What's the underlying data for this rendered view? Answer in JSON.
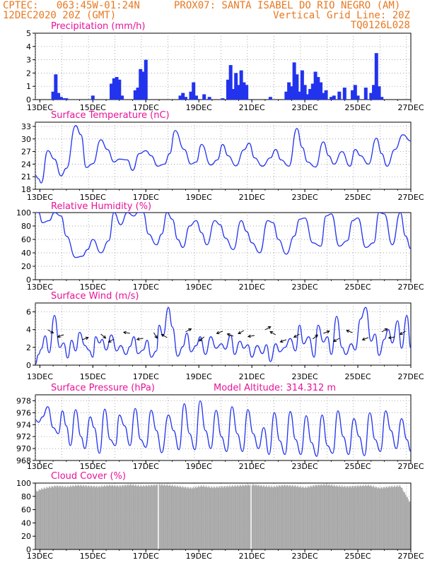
{
  "header": {
    "left_line1": "CPTEC:   063:45W-01:24N",
    "left_line2": "12DEC2020 20Z (GMT)",
    "right_line1": "PROX07: SANTA ISABEL DO RIO NEGRO (AM)",
    "right_line2": "Vertical Grid Line: 20Z",
    "right_line3": "TQ0126L028"
  },
  "colors": {
    "header": "#e87820",
    "title": "#e8129a",
    "series": "#2233ee",
    "cloud": "#a9a9a9"
  },
  "chart_data": [
    {
      "id": "precip",
      "type": "bar",
      "title": "Precipitation (mm/h)",
      "ylim": [
        0,
        5
      ],
      "yticks": [
        0,
        1,
        2,
        3,
        4,
        5
      ],
      "xlim": [
        12.83,
        27.0
      ],
      "xticks": [
        "13DEC",
        "15DEC",
        "17DEC",
        "19DEC",
        "21DEC",
        "23DEC",
        "25DEC",
        "27DEC"
      ],
      "x": [
        13.5,
        13.6,
        13.7,
        13.8,
        13.9,
        14.0,
        15.0,
        15.7,
        15.8,
        15.9,
        16.0,
        16.1,
        16.6,
        16.7,
        16.8,
        16.9,
        17.0,
        18.3,
        18.4,
        18.5,
        18.7,
        18.8,
        18.9,
        19.2,
        19.4,
        19.9,
        20.1,
        20.2,
        20.3,
        20.4,
        20.5,
        20.6,
        20.7,
        20.8,
        21.7,
        22.3,
        22.4,
        22.5,
        22.6,
        22.7,
        22.8,
        22.9,
        23.0,
        23.1,
        23.2,
        23.3,
        23.4,
        23.5,
        23.6,
        23.7,
        23.8,
        24.0,
        24.1,
        24.3,
        24.5,
        24.8,
        24.9,
        25.0,
        25.3,
        25.5,
        25.6,
        25.7,
        25.8,
        25.9
      ],
      "values": [
        0.6,
        1.9,
        0.5,
        0.2,
        0.1,
        0.1,
        0.3,
        1.2,
        1.6,
        1.7,
        1.5,
        0.3,
        0.7,
        0.9,
        2.3,
        2.1,
        3.0,
        0.3,
        0.5,
        0.2,
        0.6,
        1.3,
        0.3,
        0.4,
        0.2,
        0.1,
        1.5,
        2.6,
        0.8,
        2.0,
        1.1,
        2.2,
        1.3,
        1.1,
        0.2,
        0.6,
        1.3,
        1.0,
        2.8,
        1.9,
        0.6,
        2.2,
        1.1,
        0.4,
        0.8,
        1.2,
        2.1,
        1.7,
        1.3,
        0.5,
        0.7,
        0.2,
        0.3,
        0.6,
        0.9,
        0.7,
        1.1,
        0.3,
        0.9,
        0.5,
        1.1,
        3.5,
        1.0,
        0.2
      ]
    },
    {
      "id": "temp",
      "type": "line",
      "title": "Surface Temperature (nC)",
      "ylim": [
        18,
        34
      ],
      "yticks": [
        18,
        21,
        24,
        27,
        30,
        33
      ],
      "xlim": [
        12.83,
        27.0
      ],
      "xticks": [
        "13DEC",
        "15DEC",
        "17DEC",
        "19DEC",
        "21DEC",
        "23DEC",
        "25DEC",
        "27DEC"
      ],
      "x": [
        12.83,
        12.95,
        13.05,
        13.3,
        13.55,
        13.8,
        14.0,
        14.35,
        14.55,
        14.75,
        15.0,
        15.3,
        15.55,
        15.8,
        16.0,
        16.3,
        16.5,
        16.75,
        17.0,
        17.2,
        17.45,
        17.7,
        17.9,
        18.1,
        18.45,
        18.7,
        18.9,
        19.1,
        19.45,
        19.7,
        19.9,
        20.1,
        20.4,
        20.7,
        20.9,
        21.1,
        21.4,
        21.7,
        21.9,
        22.1,
        22.4,
        22.7,
        22.9,
        23.1,
        23.4,
        23.7,
        23.9,
        24.1,
        24.4,
        24.7,
        24.9,
        25.1,
        25.4,
        25.7,
        25.9,
        26.1,
        26.4,
        26.7,
        27.0
      ],
      "values": [
        21.3,
        20.5,
        19.5,
        27.2,
        25.2,
        21.2,
        23.0,
        33.2,
        31.0,
        23.2,
        24.1,
        29.8,
        27.5,
        24.5,
        25.2,
        25.0,
        22.5,
        26.5,
        27.2,
        26.0,
        23.5,
        24.0,
        26.5,
        32.0,
        27.5,
        24.0,
        24.5,
        28.7,
        23.8,
        25.0,
        28.7,
        26.0,
        23.6,
        27.4,
        29.0,
        25.5,
        23.5,
        25.5,
        27.5,
        25.0,
        23.5,
        32.5,
        28.0,
        24.5,
        23.3,
        29.3,
        26.0,
        24.0,
        27.0,
        23.5,
        27.5,
        26.0,
        24.0,
        30.2,
        26.5,
        23.5,
        27.5,
        31.0,
        29.5
      ]
    },
    {
      "id": "rh",
      "type": "line",
      "title": "Relative Humidity (%)",
      "ylim": [
        0,
        100
      ],
      "yticks": [
        0,
        20,
        40,
        60,
        80,
        100
      ],
      "xlim": [
        12.83,
        27.0
      ],
      "xticks": [
        "13DEC",
        "15DEC",
        "17DEC",
        "19DEC",
        "21DEC",
        "23DEC",
        "25DEC",
        "27DEC"
      ],
      "x": [
        12.83,
        12.95,
        13.1,
        13.35,
        13.55,
        13.8,
        14.0,
        14.35,
        14.6,
        14.8,
        15.0,
        15.3,
        15.6,
        15.8,
        16.05,
        16.3,
        16.55,
        16.7,
        16.9,
        17.1,
        17.4,
        17.6,
        17.8,
        18.0,
        18.2,
        18.4,
        18.65,
        18.9,
        19.1,
        19.3,
        19.6,
        19.8,
        20.0,
        20.3,
        20.6,
        20.8,
        21.0,
        21.3,
        21.6,
        21.8,
        22.0,
        22.3,
        22.6,
        22.8,
        23.0,
        23.3,
        23.6,
        23.8,
        24.0,
        24.3,
        24.6,
        24.8,
        25.0,
        25.3,
        25.6,
        25.8,
        26.0,
        26.3,
        26.6,
        26.8,
        27.0
      ],
      "values": [
        100,
        100,
        85,
        88,
        100,
        95,
        65,
        33,
        35,
        45,
        60,
        40,
        58,
        100,
        82,
        100,
        95,
        100,
        100,
        68,
        52,
        68,
        100,
        90,
        60,
        48,
        80,
        88,
        70,
        52,
        88,
        82,
        62,
        45,
        88,
        72,
        55,
        40,
        88,
        85,
        60,
        38,
        65,
        90,
        92,
        55,
        50,
        95,
        98,
        50,
        58,
        88,
        92,
        48,
        55,
        100,
        98,
        52,
        100,
        65,
        46
      ]
    },
    {
      "id": "wind",
      "type": "line",
      "title": "Surface Wind (m/s)",
      "ylim": [
        0,
        7
      ],
      "yticks": [
        0,
        2,
        4,
        6
      ],
      "xlim": [
        12.83,
        27.0
      ],
      "xticks": [
        "13DEC",
        "15DEC",
        "17DEC",
        "19DEC",
        "21DEC",
        "23DEC",
        "25DEC",
        "27DEC"
      ],
      "x": [
        12.83,
        12.95,
        13.05,
        13.2,
        13.35,
        13.55,
        13.75,
        13.9,
        14.05,
        14.2,
        14.35,
        14.5,
        14.7,
        14.85,
        15.0,
        15.1,
        15.25,
        15.35,
        15.5,
        15.7,
        15.9,
        16.05,
        16.25,
        16.4,
        16.55,
        16.7,
        16.9,
        17.05,
        17.2,
        17.4,
        17.5,
        17.65,
        17.85,
        18.0,
        18.2,
        18.4,
        18.55,
        18.7,
        18.9,
        19.05,
        19.25,
        19.45,
        19.65,
        19.85,
        20.0,
        20.2,
        20.35,
        20.55,
        20.7,
        20.85,
        21.0,
        21.2,
        21.4,
        21.55,
        21.7,
        21.9,
        22.05,
        22.25,
        22.45,
        22.65,
        22.8,
        22.95,
        23.15,
        23.35,
        23.5,
        23.7,
        23.85,
        24.0,
        24.2,
        24.4,
        24.55,
        24.75,
        24.9,
        25.1,
        25.3,
        25.5,
        25.65,
        25.8,
        26.0,
        26.15,
        26.3,
        26.5,
        26.65,
        26.85,
        27.0
      ],
      "values": [
        0.1,
        1.2,
        1.8,
        3.3,
        1.4,
        5.6,
        2.0,
        2.5,
        0.8,
        2.8,
        1.6,
        3.7,
        2.2,
        1.7,
        0.9,
        3.2,
        2.5,
        2.9,
        1.7,
        3.4,
        1.6,
        2.2,
        1.2,
        2.1,
        3.2,
        1.3,
        1.7,
        2.8,
        0.9,
        1.6,
        4.5,
        3.3,
        6.5,
        4.3,
        1.0,
        2.1,
        3.6,
        1.5,
        2.2,
        3.2,
        1.2,
        3.2,
        1.9,
        2.4,
        1.8,
        3.4,
        1.2,
        2.7,
        1.9,
        2.3,
        0.9,
        2.2,
        1.3,
        2.3,
        0.4,
        2.4,
        1.5,
        2.0,
        3.0,
        1.6,
        4.5,
        2.4,
        3.2,
        0.9,
        4.5,
        2.6,
        3.2,
        1.2,
        5.5,
        2.0,
        1.2,
        2.4,
        1.7,
        5.2,
        6.5,
        2.7,
        3.5,
        1.1,
        2.9,
        4.0,
        2.5,
        5.0,
        1.9,
        5.6,
        1.9
      ]
    },
    {
      "id": "pressure",
      "type": "line",
      "title": "Surface Pressure (hPa)",
      "annotation": "Model Altitude: 314.312 m",
      "ylim": [
        968,
        979
      ],
      "yticks": [
        968,
        970,
        972,
        974,
        976,
        978
      ],
      "xlim": [
        12.83,
        27.0
      ],
      "xticks": [
        "13DEC",
        "15DEC",
        "17DEC",
        "19DEC",
        "21DEC",
        "23DEC",
        "25DEC",
        "27DEC"
      ],
      "x": [
        12.83,
        12.95,
        13.1,
        13.3,
        13.5,
        13.7,
        13.85,
        14.0,
        14.15,
        14.35,
        14.55,
        14.7,
        14.9,
        15.05,
        15.25,
        15.45,
        15.65,
        15.85,
        16.0,
        16.2,
        16.4,
        16.6,
        16.8,
        17.0,
        17.2,
        17.4,
        17.6,
        17.85,
        18.05,
        18.25,
        18.45,
        18.65,
        18.85,
        19.05,
        19.25,
        19.45,
        19.65,
        19.85,
        20.05,
        20.25,
        20.45,
        20.65,
        20.85,
        21.05,
        21.25,
        21.45,
        21.65,
        21.85,
        22.05,
        22.25,
        22.45,
        22.65,
        22.85,
        23.05,
        23.25,
        23.45,
        23.65,
        23.85,
        24.05,
        24.25,
        24.45,
        24.65,
        24.85,
        25.05,
        25.25,
        25.45,
        25.65,
        25.85,
        26.05,
        26.25,
        26.45,
        26.65,
        26.85,
        27.0
      ],
      "values": [
        974.8,
        974.4,
        975.3,
        977.0,
        973.5,
        972.5,
        976.3,
        973.8,
        970.5,
        976.5,
        972.0,
        970.0,
        975.3,
        973.5,
        969.2,
        976.6,
        971.5,
        970.5,
        975.6,
        973.8,
        970.5,
        976.7,
        971.5,
        970.2,
        976.4,
        973.0,
        969.3,
        975.6,
        973.0,
        969.8,
        977.5,
        972.5,
        969.8,
        978.0,
        973.0,
        970.0,
        976.4,
        972.0,
        969.5,
        977.0,
        972.5,
        969.5,
        976.5,
        972.5,
        970.0,
        973.5,
        969.0,
        976.0,
        971.3,
        969.0,
        976.2,
        971.5,
        969.0,
        975.5,
        971.0,
        968.7,
        975.6,
        970.5,
        969.2,
        976.3,
        972.0,
        969.0,
        975.0,
        972.0,
        968.8,
        976.0,
        971.5,
        969.5,
        976.3,
        973.0,
        970.0,
        975.0,
        971.5,
        969.5
      ]
    },
    {
      "id": "cloud",
      "type": "area",
      "title": "Cloud Cover (%)",
      "ylim": [
        0,
        100
      ],
      "yticks": [
        0,
        20,
        40,
        60,
        80,
        100
      ],
      "xlim": [
        12.83,
        27.0
      ],
      "xticks": [
        "13DEC",
        "15DEC",
        "17DEC",
        "19DEC",
        "21DEC",
        "23DEC",
        "25DEC",
        "27DEC"
      ],
      "x": [
        12.83,
        13.0,
        13.3,
        13.6,
        14.0,
        14.4,
        14.8,
        15.2,
        15.6,
        16.0,
        16.4,
        16.8,
        17.2,
        17.5,
        17.9,
        18.3,
        18.7,
        19.1,
        19.5,
        19.9,
        20.3,
        20.7,
        21.0,
        21.4,
        21.8,
        22.2,
        22.6,
        23.0,
        23.4,
        23.8,
        24.2,
        24.6,
        25.0,
        25.4,
        25.8,
        26.2,
        26.6,
        27.0
      ],
      "values": [
        88,
        92,
        95,
        97,
        96,
        98,
        97,
        96,
        98,
        97,
        99,
        97,
        98,
        99,
        98,
        96,
        94,
        97,
        95,
        96,
        97,
        98,
        99,
        97,
        96,
        98,
        97,
        95,
        98,
        99,
        97,
        96,
        97,
        98,
        94,
        96,
        97,
        69
      ]
    }
  ]
}
